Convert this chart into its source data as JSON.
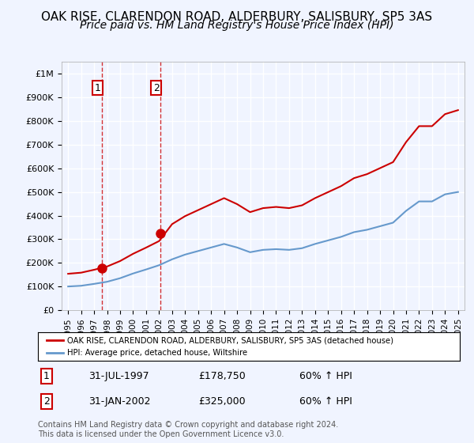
{
  "title": "OAK RISE, CLARENDON ROAD, ALDERBURY, SALISBURY, SP5 3AS",
  "subtitle": "Price paid vs. HM Land Registry's House Price Index (HPI)",
  "title_fontsize": 11,
  "subtitle_fontsize": 10,
  "bg_color": "#f0f4ff",
  "plot_bg_color": "#f0f4ff",
  "grid_color": "#ffffff",
  "sale1": {
    "date": 1997.58,
    "price": 178750,
    "label": "1"
  },
  "sale2": {
    "date": 2002.08,
    "price": 325000,
    "label": "2"
  },
  "red_line_color": "#cc0000",
  "blue_line_color": "#6699cc",
  "dashed_line_color": "#cc0000",
  "ylim": [
    0,
    1050000
  ],
  "xlim": [
    1994.5,
    2025.5
  ],
  "yticks": [
    0,
    100000,
    200000,
    300000,
    400000,
    500000,
    600000,
    700000,
    800000,
    900000,
    1000000
  ],
  "ytick_labels": [
    "£0",
    "£100K",
    "£200K",
    "£300K",
    "£400K",
    "£500K",
    "£600K",
    "£700K",
    "£800K",
    "£900K",
    "£1M"
  ],
  "xticks": [
    1995,
    1996,
    1997,
    1998,
    1999,
    2000,
    2001,
    2002,
    2003,
    2004,
    2005,
    2006,
    2007,
    2008,
    2009,
    2010,
    2011,
    2012,
    2013,
    2014,
    2015,
    2016,
    2017,
    2018,
    2019,
    2020,
    2021,
    2022,
    2023,
    2024,
    2025
  ],
  "legend_house_label": "OAK RISE, CLARENDON ROAD, ALDERBURY, SALISBURY, SP5 3AS (detached house)",
  "legend_hpi_label": "HPI: Average price, detached house, Wiltshire",
  "footer": "Contains HM Land Registry data © Crown copyright and database right 2024.\nThis data is licensed under the Open Government Licence v3.0.",
  "table": [
    {
      "num": "1",
      "date": "31-JUL-1997",
      "price": "£178,750",
      "hpi": "60% ↑ HPI"
    },
    {
      "num": "2",
      "date": "31-JAN-2002",
      "price": "£325,000",
      "hpi": "60% ↑ HPI"
    }
  ]
}
